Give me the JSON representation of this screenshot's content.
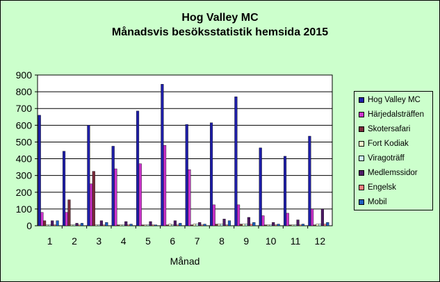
{
  "chart_data": {
    "type": "bar",
    "title": "Hog Valley MC",
    "subtitle": "Månadsvis besöksstatistik hemsida 2015",
    "xlabel": "Månad",
    "ylabel": "",
    "ylim": [
      0,
      900
    ],
    "yticks": [
      "0",
      "100",
      "200",
      "300",
      "400",
      "500",
      "600",
      "700",
      "800",
      "900"
    ],
    "grid": true,
    "legend_position": "right",
    "categories": [
      "1",
      "2",
      "3",
      "4",
      "5",
      "6",
      "7",
      "8",
      "9",
      "10",
      "11",
      "12"
    ],
    "series": [
      {
        "name": "Hog Valley MC",
        "color": "#1f1fa8",
        "values": [
          660,
          445,
          600,
          475,
          685,
          845,
          605,
          615,
          770,
          465,
          415,
          535
        ]
      },
      {
        "name": "Härjedalsträffen",
        "color": "#cc33cc",
        "values": [
          80,
          80,
          250,
          340,
          370,
          480,
          335,
          125,
          125,
          60,
          75,
          100
        ]
      },
      {
        "name": "Skotersafari",
        "color": "#7a2a3a",
        "values": [
          30,
          155,
          325,
          5,
          5,
          5,
          5,
          10,
          10,
          5,
          5,
          5
        ]
      },
      {
        "name": "Fort Kodiak",
        "color": "#ffffcc",
        "values": [
          5,
          5,
          5,
          5,
          5,
          10,
          10,
          10,
          10,
          5,
          5,
          10
        ]
      },
      {
        "name": "Viragoträff",
        "color": "#ccffff",
        "values": [
          5,
          5,
          5,
          5,
          5,
          5,
          10,
          10,
          10,
          5,
          5,
          10
        ]
      },
      {
        "name": "Medlemssidor",
        "color": "#4d1a66",
        "values": [
          30,
          15,
          30,
          25,
          25,
          30,
          20,
          40,
          50,
          20,
          35,
          100
        ]
      },
      {
        "name": "Engelsk",
        "color": "#ff8080",
        "values": [
          5,
          5,
          5,
          5,
          5,
          5,
          5,
          5,
          10,
          5,
          5,
          10
        ]
      },
      {
        "name": "Mobil",
        "color": "#1f5fbf",
        "values": [
          30,
          15,
          20,
          10,
          5,
          15,
          10,
          30,
          20,
          10,
          10,
          20
        ]
      }
    ]
  }
}
